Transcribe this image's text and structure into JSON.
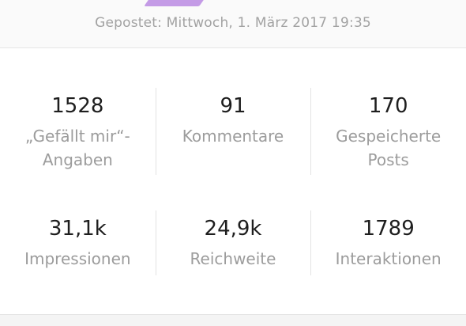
{
  "post": {
    "posted_text": "Gepostet: Mittwoch, 1. März 2017 19:35"
  },
  "stats": {
    "row1": [
      {
        "value": "1528",
        "label": "„Gefällt mir“-Angaben"
      },
      {
        "value": "91",
        "label": "Kommentare"
      },
      {
        "value": "170",
        "label": "Gespeicherte Posts"
      }
    ],
    "row2": [
      {
        "value": "31,1k",
        "label": "Impressionen"
      },
      {
        "value": "24,9k",
        "label": "Reichweite"
      },
      {
        "value": "1789",
        "label": "Interaktionen"
      }
    ]
  },
  "colors": {
    "image_accent": "#c49be6"
  }
}
